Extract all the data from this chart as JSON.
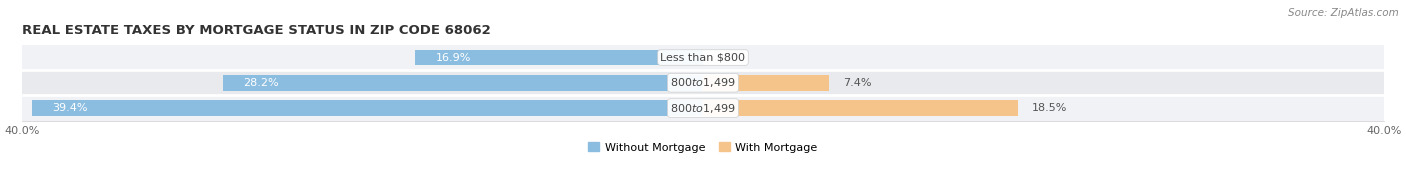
{
  "title": "REAL ESTATE TAXES BY MORTGAGE STATUS IN ZIP CODE 68062",
  "source": "Source: ZipAtlas.com",
  "rows": [
    {
      "label": "Less than $800",
      "without_mortgage": 16.9,
      "with_mortgage": 0.0
    },
    {
      "label": "$800 to $1,499",
      "without_mortgage": 28.2,
      "with_mortgage": 7.4
    },
    {
      "label": "$800 to $1,499",
      "without_mortgage": 39.4,
      "with_mortgage": 18.5
    }
  ],
  "x_max": 40.0,
  "color_without": "#8bbde0",
  "color_with": "#f5c48a",
  "bar_height": 0.62,
  "row_bg_colors": [
    "#f0f2f5",
    "#e8eaed",
    "#f0f2f5"
  ],
  "title_fontsize": 9.5,
  "source_fontsize": 7.5,
  "axis_fontsize": 8,
  "value_fontsize": 8,
  "label_fontsize": 8,
  "legend_without": "Without Mortgage",
  "legend_with": "With Mortgage",
  "fig_width": 14.06,
  "fig_height": 1.96,
  "dpi": 100
}
